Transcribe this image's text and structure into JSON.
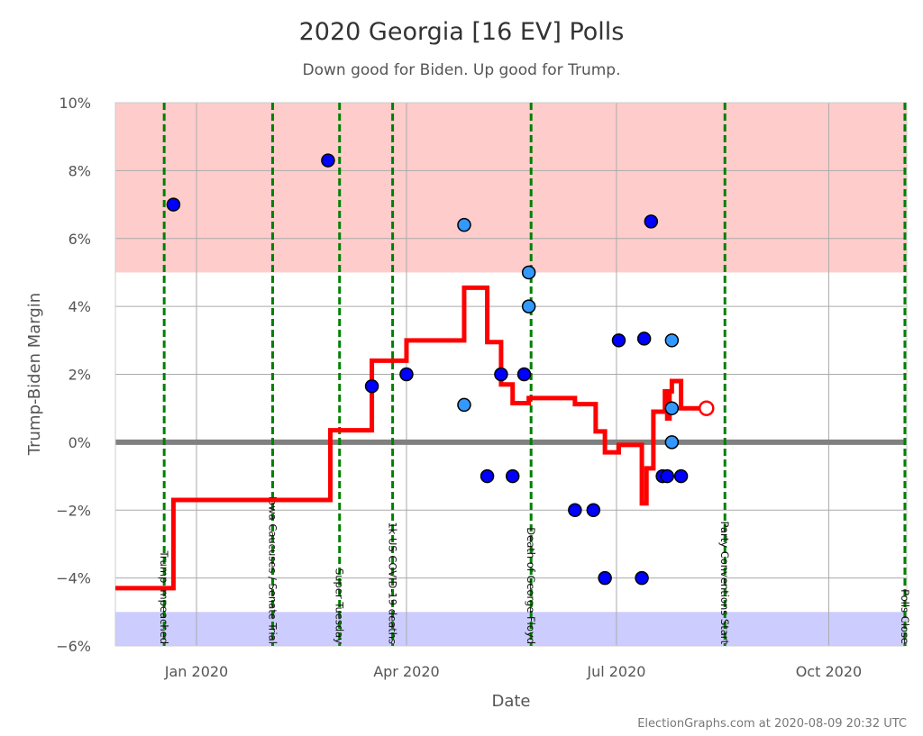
{
  "chart_data": {
    "type": "scatter",
    "title": "2020 Georgia [16 EV] Polls",
    "subtitle": "Down good for Biden. Up good for Trump.",
    "xlabel": "Date",
    "ylabel": "Trump-Biden Margin",
    "xlim": [
      "2019-11-27",
      "2020-11-04"
    ],
    "ylim": [
      -6,
      10
    ],
    "y_ticks": [
      {
        "value": 10,
        "label": "10%"
      },
      {
        "value": 8,
        "label": "8%"
      },
      {
        "value": 6,
        "label": "6%"
      },
      {
        "value": 4,
        "label": "4%"
      },
      {
        "value": 2,
        "label": "2%"
      },
      {
        "value": 0,
        "label": "0%"
      },
      {
        "value": -2,
        "label": "−2%"
      },
      {
        "value": -4,
        "label": "−4%"
      },
      {
        "value": -6,
        "label": "−6%"
      }
    ],
    "x_ticks": [
      {
        "date": "2020-01-01",
        "label": "Jan 2020"
      },
      {
        "date": "2020-04-01",
        "label": "Apr 2020"
      },
      {
        "date": "2020-07-01",
        "label": "Jul 2020"
      },
      {
        "date": "2020-10-01",
        "label": "Oct 2020"
      }
    ],
    "grid": true,
    "bands": [
      {
        "from": 5,
        "to": 10,
        "color": "#ffcccc"
      },
      {
        "from": -6,
        "to": -5,
        "color": "#ccccff"
      }
    ],
    "zero_line_color": "#808080",
    "events": [
      {
        "date": "2019-12-18",
        "label": "Trump Impeached"
      },
      {
        "date": "2020-02-03",
        "label": "Iowa Caucuses / Senate Trial"
      },
      {
        "date": "2020-03-03",
        "label": "Super Tuesday"
      },
      {
        "date": "2020-03-26",
        "label": "1k US COVID-19 deaths"
      },
      {
        "date": "2020-05-25",
        "label": "Death of George Floyd"
      },
      {
        "date": "2020-08-17",
        "label": "Party Conventions Start"
      },
      {
        "date": "2020-11-03",
        "label": "Polls Close"
      }
    ],
    "event_color": "#008000",
    "average_color": "#ff0000",
    "average": [
      {
        "date": "2019-11-27",
        "value": -4.3
      },
      {
        "date": "2019-12-22",
        "value": -1.7
      },
      {
        "date": "2020-02-28",
        "value": 0.35
      },
      {
        "date": "2020-03-17",
        "value": 2.4
      },
      {
        "date": "2020-04-01",
        "value": 3.0
      },
      {
        "date": "2020-04-26",
        "value": 4.55
      },
      {
        "date": "2020-05-06",
        "value": 2.95
      },
      {
        "date": "2020-05-12",
        "value": 1.7
      },
      {
        "date": "2020-05-17",
        "value": 1.15
      },
      {
        "date": "2020-05-24",
        "value": 1.3
      },
      {
        "date": "2020-06-13",
        "value": 1.12
      },
      {
        "date": "2020-06-22",
        "value": 0.32
      },
      {
        "date": "2020-06-26",
        "value": -0.3
      },
      {
        "date": "2020-07-02",
        "value": -0.08
      },
      {
        "date": "2020-07-12",
        "value": -1.8
      },
      {
        "date": "2020-07-14",
        "value": -0.77
      },
      {
        "date": "2020-07-17",
        "value": 0.9
      },
      {
        "date": "2020-07-22",
        "value": 1.5
      },
      {
        "date": "2020-07-23",
        "value": 0.7
      },
      {
        "date": "2020-07-24",
        "value": 1.5
      },
      {
        "date": "2020-07-25",
        "value": 1.8
      },
      {
        "date": "2020-07-29",
        "value": 1.0
      },
      {
        "date": "2020-08-09",
        "value": 1.0
      }
    ],
    "current_average": {
      "date": "2020-08-09",
      "value": 1.0
    },
    "poll_colors": {
      "dark": "#0000ff",
      "light": "#3399ff"
    },
    "polls": [
      {
        "date": "2019-12-22",
        "value": 7.0,
        "shade": "dark"
      },
      {
        "date": "2020-02-27",
        "value": 8.3,
        "shade": "dark"
      },
      {
        "date": "2020-03-17",
        "value": 1.65,
        "shade": "dark"
      },
      {
        "date": "2020-04-01",
        "value": 2.0,
        "shade": "dark"
      },
      {
        "date": "2020-04-26",
        "value": 6.4,
        "shade": "light"
      },
      {
        "date": "2020-04-26",
        "value": 1.1,
        "shade": "light"
      },
      {
        "date": "2020-05-06",
        "value": -1.0,
        "shade": "dark"
      },
      {
        "date": "2020-05-12",
        "value": 2.0,
        "shade": "dark"
      },
      {
        "date": "2020-05-17",
        "value": -1.0,
        "shade": "dark"
      },
      {
        "date": "2020-05-22",
        "value": 2.0,
        "shade": "dark"
      },
      {
        "date": "2020-05-24",
        "value": 5.0,
        "shade": "light"
      },
      {
        "date": "2020-05-24",
        "value": 4.0,
        "shade": "light"
      },
      {
        "date": "2020-06-13",
        "value": -2.0,
        "shade": "dark"
      },
      {
        "date": "2020-06-21",
        "value": -2.0,
        "shade": "dark"
      },
      {
        "date": "2020-06-26",
        "value": -4.0,
        "shade": "dark"
      },
      {
        "date": "2020-07-02",
        "value": 3.0,
        "shade": "dark"
      },
      {
        "date": "2020-07-12",
        "value": -4.0,
        "shade": "dark"
      },
      {
        "date": "2020-07-13",
        "value": 3.05,
        "shade": "dark"
      },
      {
        "date": "2020-07-16",
        "value": 6.5,
        "shade": "dark"
      },
      {
        "date": "2020-07-21",
        "value": -1.0,
        "shade": "dark"
      },
      {
        "date": "2020-07-23",
        "value": -1.0,
        "shade": "dark"
      },
      {
        "date": "2020-07-25",
        "value": 3.0,
        "shade": "light"
      },
      {
        "date": "2020-07-25",
        "value": 1.0,
        "shade": "light"
      },
      {
        "date": "2020-07-25",
        "value": 0.0,
        "shade": "light"
      },
      {
        "date": "2020-07-29",
        "value": -1.0,
        "shade": "dark"
      }
    ],
    "credit": "ElectionGraphs.com at 2020-08-09 20:32 UTC"
  }
}
